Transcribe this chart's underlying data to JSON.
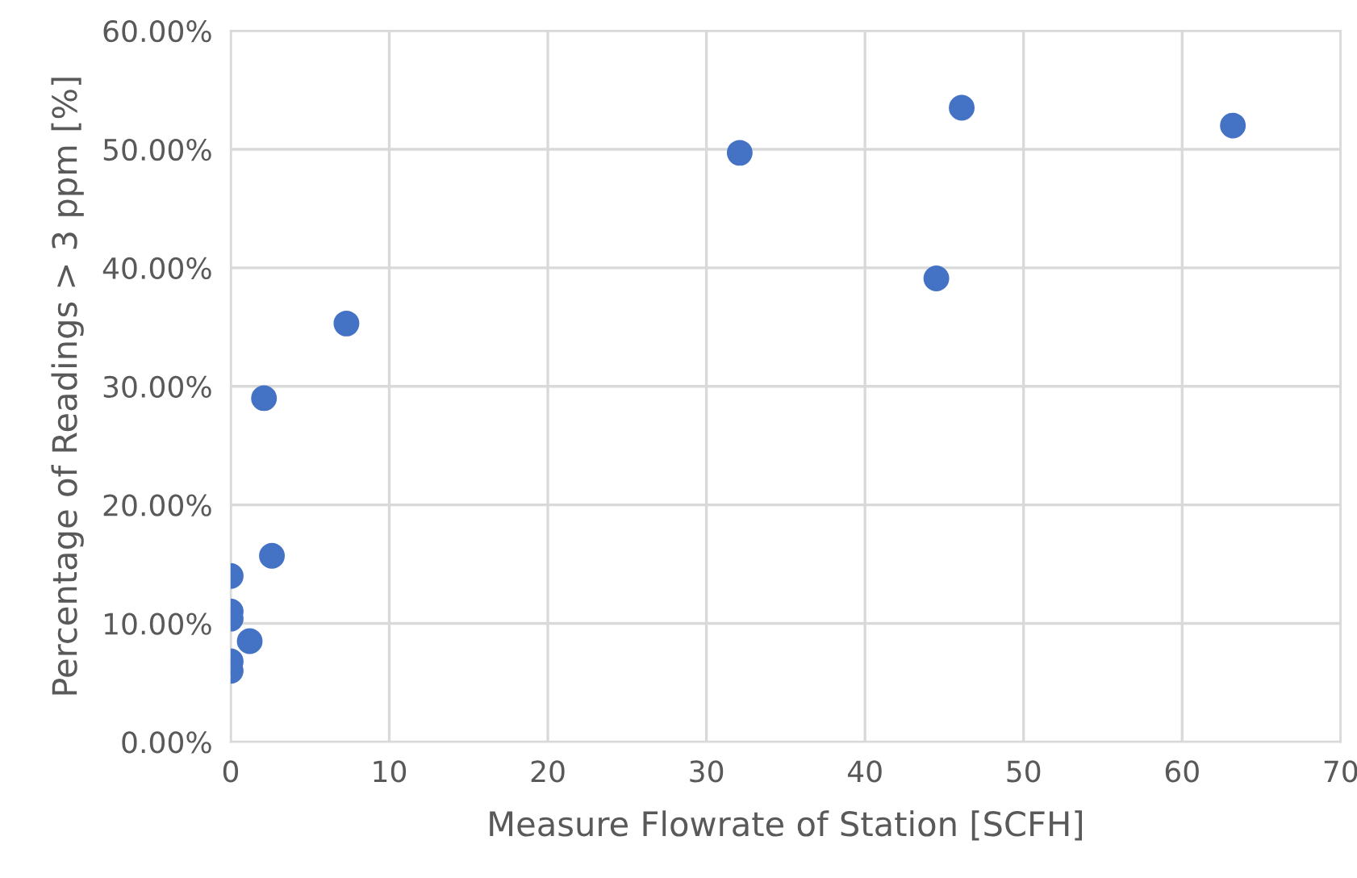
{
  "chart_data": {
    "type": "scatter",
    "xlabel": "Measure Flowrate of Station [SCFH]",
    "ylabel": "Percentage of Readings > 3 ppm [%]",
    "x": [
      0,
      0,
      0,
      1.2,
      0,
      0,
      2.1,
      2.6,
      7.3,
      32.1,
      44.5,
      46.1,
      63.2
    ],
    "values": [
      14.0,
      11.0,
      10.4,
      8.5,
      6.8,
      6.0,
      29.0,
      15.7,
      35.3,
      49.7,
      39.1,
      53.5,
      52.0
    ],
    "color": "#4472c4",
    "marker": "circle",
    "grid": true,
    "legend": false,
    "xlim": [
      0,
      70
    ],
    "xticks": [
      0,
      10,
      20,
      30,
      40,
      50,
      60,
      70
    ],
    "ylim": [
      0,
      60
    ],
    "yticks": [
      {
        "value": 0,
        "label": "0.00%"
      },
      {
        "value": 10,
        "label": "10.00%"
      },
      {
        "value": 20,
        "label": "20.00%"
      },
      {
        "value": 30,
        "label": "30.00%"
      },
      {
        "value": 40,
        "label": "40.00%"
      },
      {
        "value": 50,
        "label": "50.00%"
      },
      {
        "value": 60,
        "label": "60.00%"
      }
    ]
  }
}
